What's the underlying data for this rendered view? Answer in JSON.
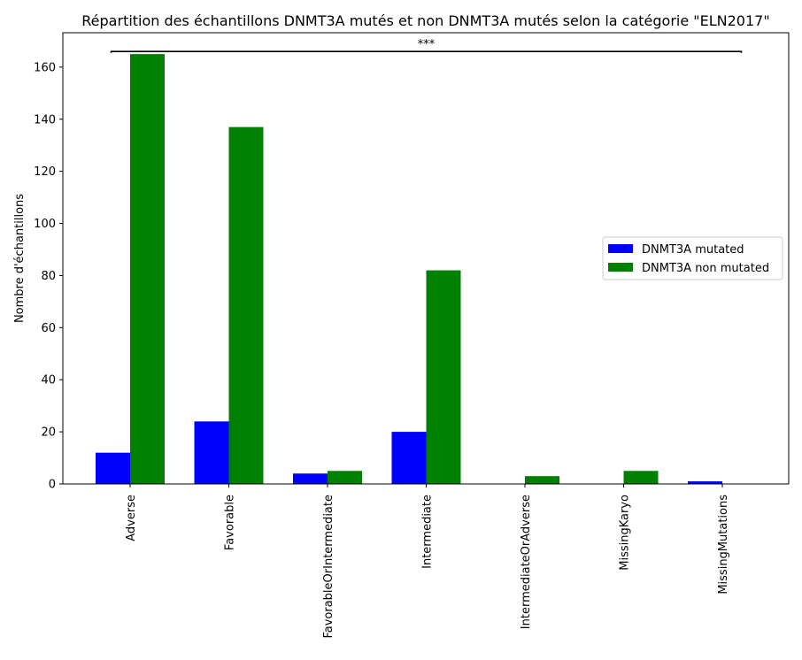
{
  "chart_data": {
    "type": "bar",
    "title": "Répartition des échantillons DNMT3A mutés et non DNMT3A mutés selon la catégorie \"ELN2017\"",
    "xlabel": "",
    "ylabel": "Nombre d'échantillons",
    "categories": [
      "Adverse",
      "Favorable",
      "FavorableOrIntermediate",
      "Intermediate",
      "IntermediateOrAdverse",
      "MissingKaryo",
      "MissingMutations"
    ],
    "series": [
      {
        "name": "DNMT3A mutated",
        "color": "#0000ff",
        "values": [
          12,
          24,
          4,
          20,
          0,
          0,
          1
        ]
      },
      {
        "name": "DNMT3A non mutated",
        "color": "#008000",
        "values": [
          165,
          137,
          5,
          82,
          3,
          5,
          0
        ]
      }
    ],
    "ylim": [
      0,
      173.2
    ],
    "yticks": [
      0,
      20,
      40,
      60,
      80,
      100,
      120,
      140,
      160
    ],
    "grid": false,
    "legend_position": "center-right",
    "annotation": {
      "text": "***",
      "bracket_from_category": "Adverse",
      "bracket_to_category": "MissingMutations",
      "bracket_y": 166
    }
  }
}
